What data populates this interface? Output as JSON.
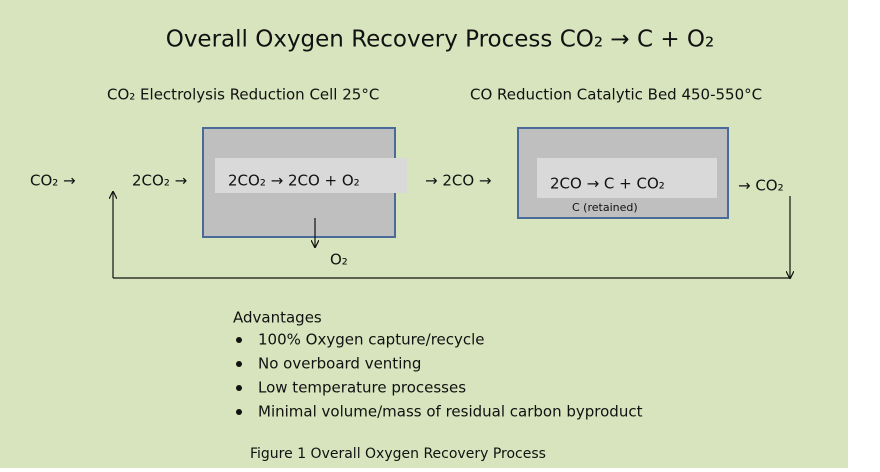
{
  "title": "Overall Oxygen Recovery Process   CO₂ → C + O₂",
  "stage_labels": [
    "CO₂ Electrolysis Reduction Cell 25°C",
    "CO Reduction Catalytic Bed 450-550°C"
  ],
  "flow": {
    "input": "CO₂ →",
    "feed": "2CO₂ →",
    "cell_reaction": "2CO₂ → 2CO + O₂",
    "intermediate": "→ 2CO →",
    "bed_reaction": "2CO → C + CO₂",
    "bed_note": "C (retained)",
    "output": "→ CO₂",
    "oxygen": "O₂"
  },
  "advantages": {
    "heading": "Advantages",
    "items": [
      "100% Oxygen capture/recycle",
      "No overboard venting",
      "Low temperature processes",
      "Minimal volume/mass of residual carbon byproduct"
    ]
  },
  "caption": "Figure 1 Overall Oxygen Recovery Process"
}
